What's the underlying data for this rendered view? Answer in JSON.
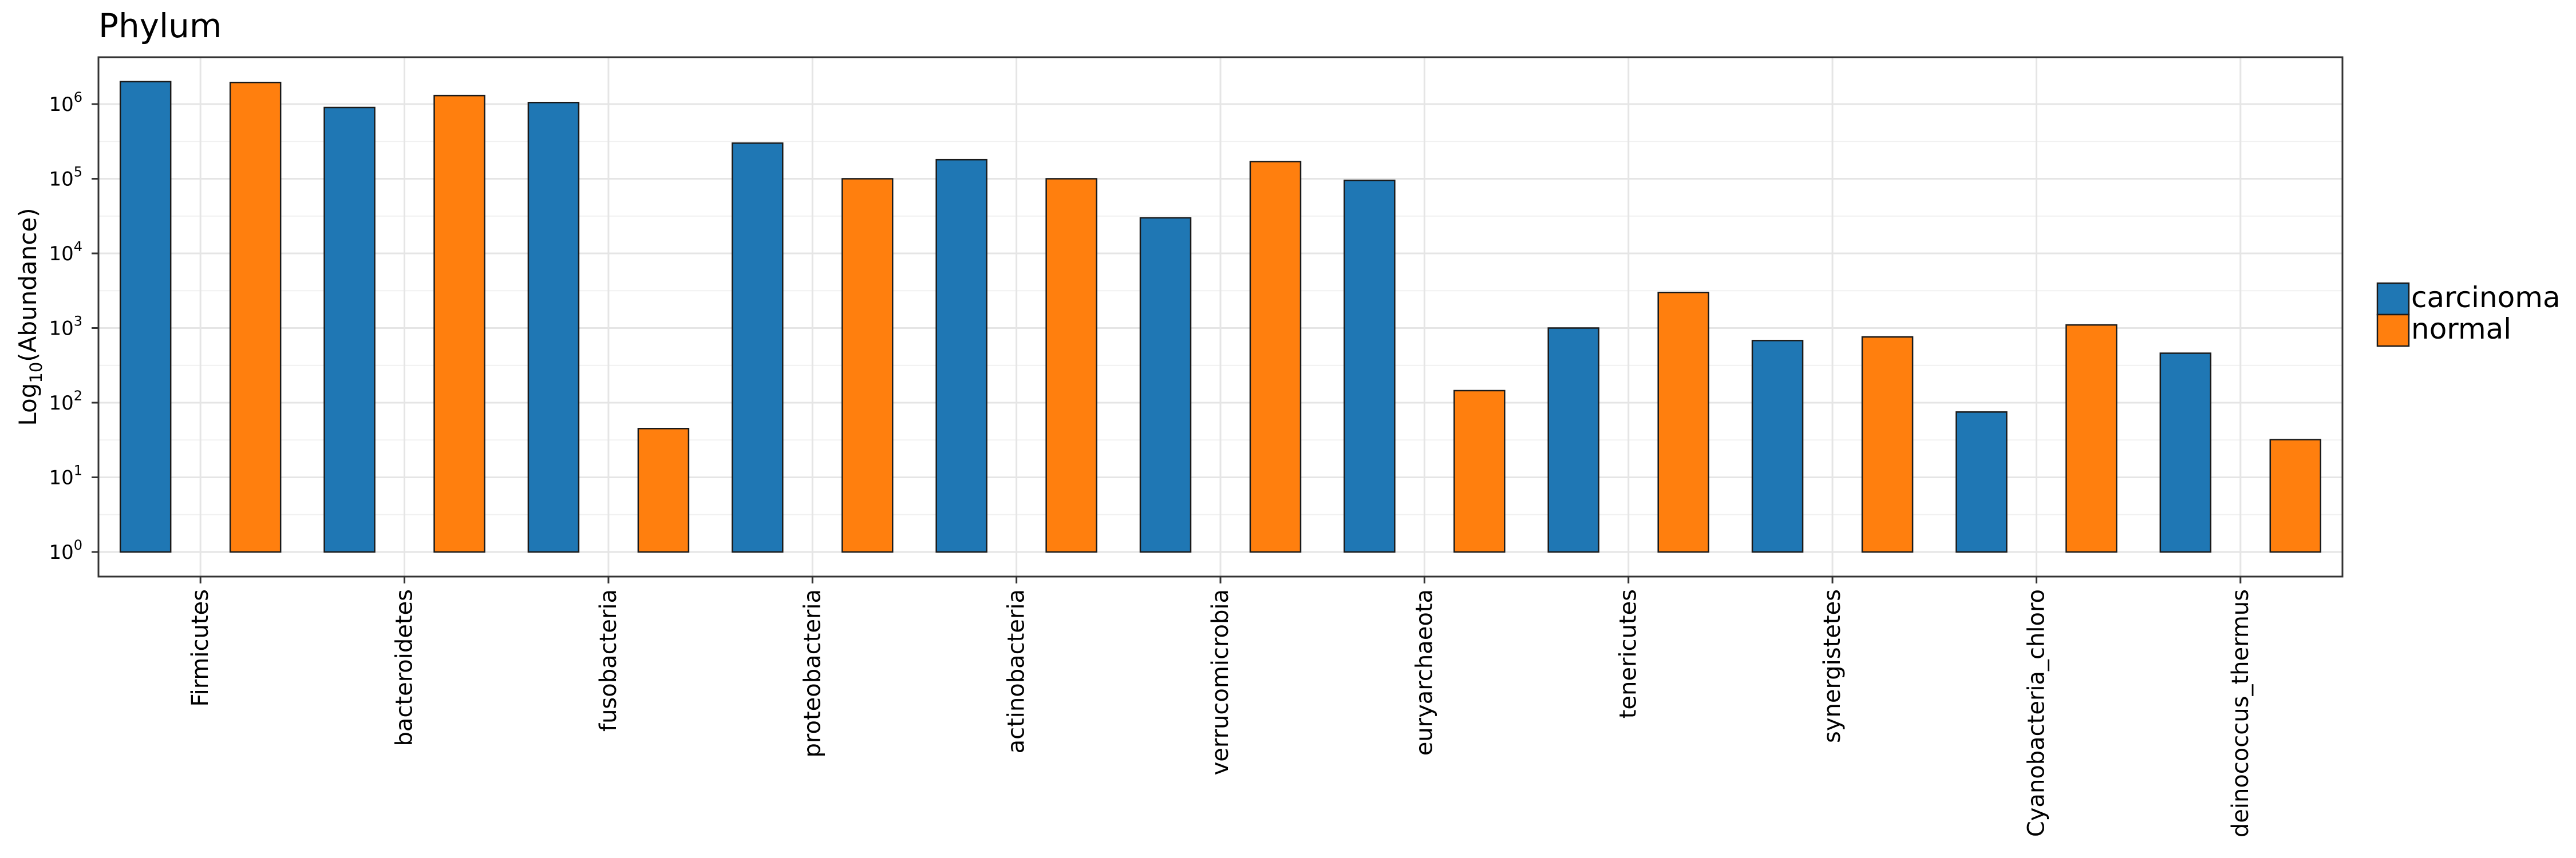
{
  "chart_data": {
    "type": "bar",
    "title": "Phylum",
    "xlabel": "",
    "ylabel": {
      "prefix": "Log",
      "subscript": "10",
      "suffix": "(Abundance)"
    },
    "yscale": "log10",
    "ylim": [
      1,
      4000000
    ],
    "yticks": [
      {
        "value": 1,
        "base": "10",
        "exp": "0"
      },
      {
        "value": 10,
        "base": "10",
        "exp": "1"
      },
      {
        "value": 100,
        "base": "10",
        "exp": "2"
      },
      {
        "value": 1000,
        "base": "10",
        "exp": "3"
      },
      {
        "value": 10000,
        "base": "10",
        "exp": "4"
      },
      {
        "value": 100000,
        "base": "10",
        "exp": "5"
      },
      {
        "value": 1000000,
        "base": "10",
        "exp": "6"
      }
    ],
    "grid": true,
    "legend_position": "right",
    "categories": [
      "Firmicutes",
      "bacteroidetes",
      "fusobacteria",
      "proteobacteria",
      "actinobacteria",
      "verrucomicrobia",
      "euryarchaeota",
      "tenericutes",
      "synergistetes",
      "Cyanobacteria_chloro",
      "deinococcus_thermus"
    ],
    "series": [
      {
        "name": "carcinoma",
        "color": "#1f77b4",
        "values": [
          2000000,
          900000,
          1050000,
          300000,
          180000,
          30000,
          95000,
          1000,
          680,
          75,
          460
        ]
      },
      {
        "name": "normal",
        "color": "#ff7f0e",
        "values": [
          1950000,
          1300000,
          45,
          100000,
          100000,
          170000,
          145,
          3000,
          760,
          1100,
          32
        ]
      }
    ]
  }
}
